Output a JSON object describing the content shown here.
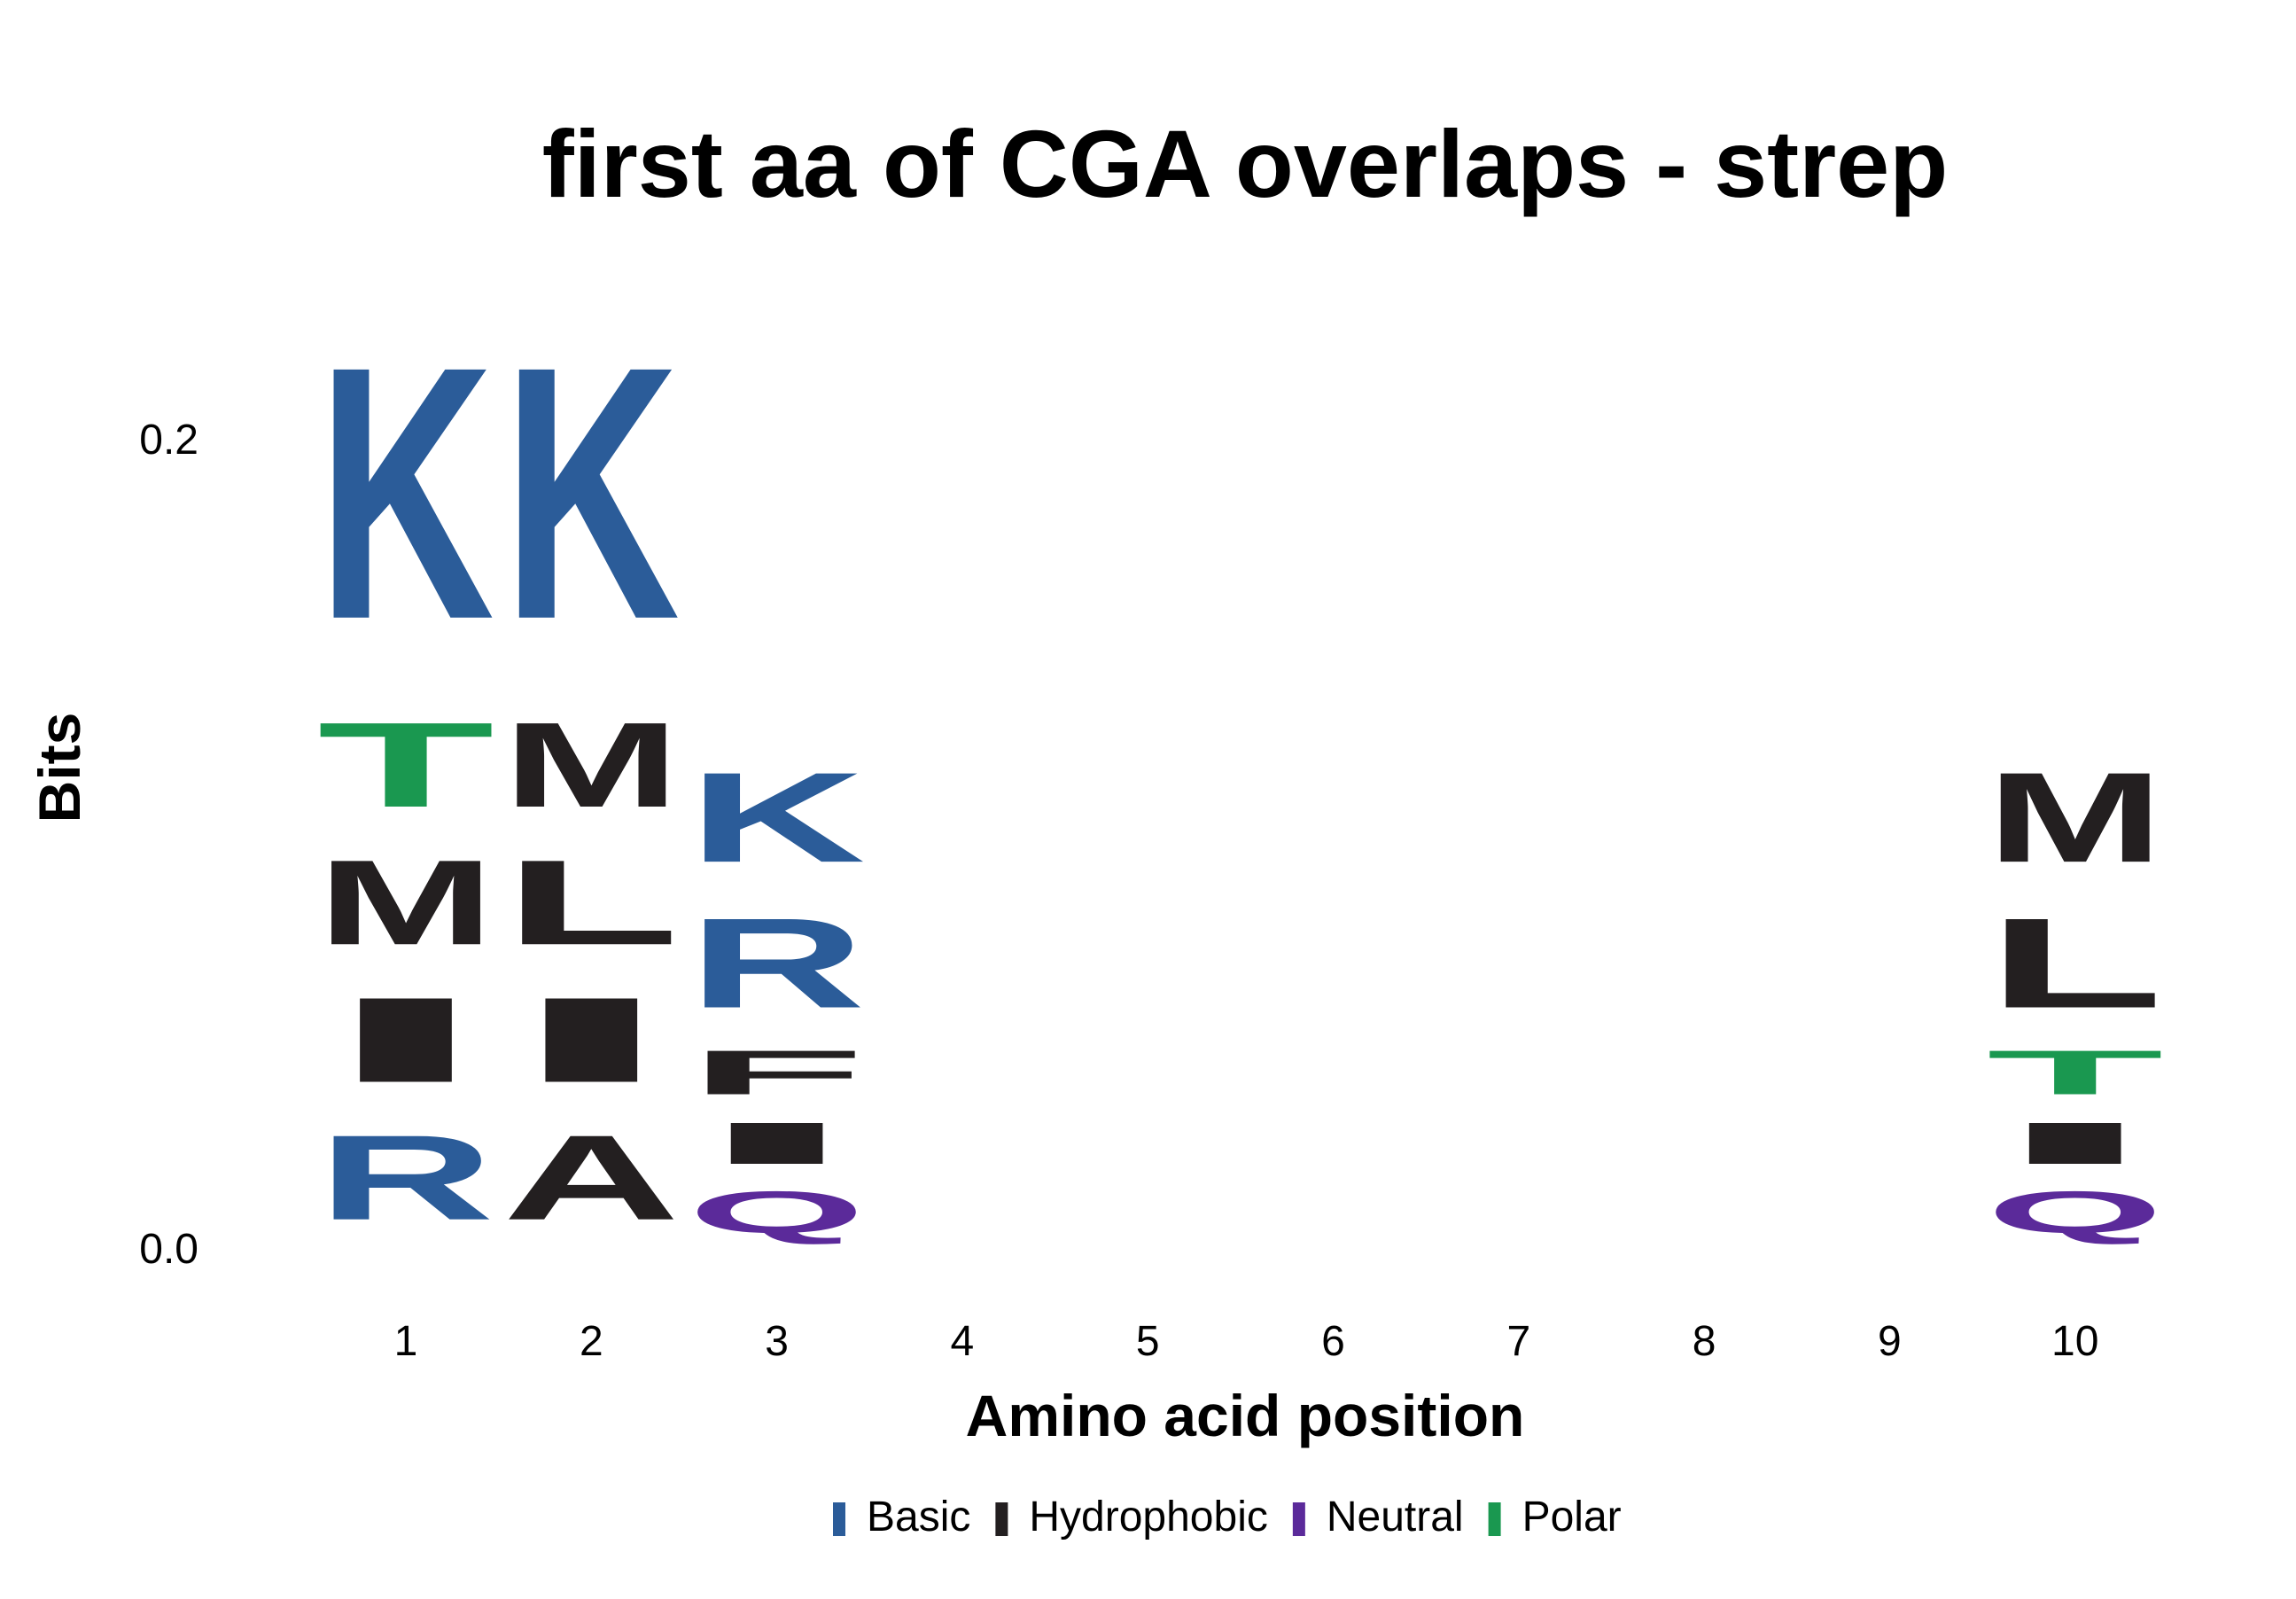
{
  "chart_data": {
    "type": "sequence-logo",
    "title": "first aa of CGA overlaps - strep",
    "xlabel": "Amino acid position",
    "ylabel": "Bits",
    "ylim": [
      0,
      0.25
    ],
    "y_ticks": [
      {
        "value": 0.0,
        "label": "0.0"
      },
      {
        "value": 0.2,
        "label": "0.2"
      }
    ],
    "positions": [
      1,
      2,
      3,
      4,
      5,
      6,
      7,
      8,
      9,
      10
    ],
    "position_labels": [
      "1",
      "2",
      "3",
      "4",
      "5",
      "6",
      "7",
      "8",
      "9",
      "10"
    ],
    "groups": [
      {
        "name": "Basic",
        "color": "#2B5C99"
      },
      {
        "name": "Hydrophobic",
        "color": "#231F20"
      },
      {
        "name": "Neutral",
        "color": "#5B2A9A"
      },
      {
        "name": "Polar",
        "color": "#1A9850"
      }
    ],
    "stacks": [
      {
        "position": 1,
        "letters": [
          {
            "aa": "R",
            "group": "Basic",
            "bits": 0.034
          },
          {
            "aa": "I",
            "group": "Hydrophobic",
            "bits": 0.034
          },
          {
            "aa": "M",
            "group": "Hydrophobic",
            "bits": 0.034
          },
          {
            "aa": "T",
            "group": "Polar",
            "bits": 0.034
          },
          {
            "aa": "K",
            "group": "Basic",
            "bits": 0.1
          }
        ]
      },
      {
        "position": 2,
        "letters": [
          {
            "aa": "A",
            "group": "Hydrophobic",
            "bits": 0.034
          },
          {
            "aa": "I",
            "group": "Hydrophobic",
            "bits": 0.034
          },
          {
            "aa": "L",
            "group": "Hydrophobic",
            "bits": 0.034
          },
          {
            "aa": "M",
            "group": "Hydrophobic",
            "bits": 0.034
          },
          {
            "aa": "K",
            "group": "Basic",
            "bits": 0.1
          }
        ]
      },
      {
        "position": 3,
        "letters": [
          {
            "aa": "Q",
            "group": "Neutral",
            "bits": 0.017
          },
          {
            "aa": "I",
            "group": "Hydrophobic",
            "bits": 0.017
          },
          {
            "aa": "F",
            "group": "Hydrophobic",
            "bits": 0.018
          },
          {
            "aa": "R",
            "group": "Basic",
            "bits": 0.036
          },
          {
            "aa": "K",
            "group": "Basic",
            "bits": 0.036
          }
        ]
      },
      {
        "position": 4,
        "letters": []
      },
      {
        "position": 5,
        "letters": []
      },
      {
        "position": 6,
        "letters": []
      },
      {
        "position": 7,
        "letters": []
      },
      {
        "position": 8,
        "letters": []
      },
      {
        "position": 9,
        "letters": []
      },
      {
        "position": 10,
        "letters": [
          {
            "aa": "Q",
            "group": "Neutral",
            "bits": 0.017
          },
          {
            "aa": "I",
            "group": "Hydrophobic",
            "bits": 0.017
          },
          {
            "aa": "T",
            "group": "Polar",
            "bits": 0.018
          },
          {
            "aa": "L",
            "group": "Hydrophobic",
            "bits": 0.036
          },
          {
            "aa": "M",
            "group": "Hydrophobic",
            "bits": 0.036
          }
        ]
      }
    ]
  }
}
